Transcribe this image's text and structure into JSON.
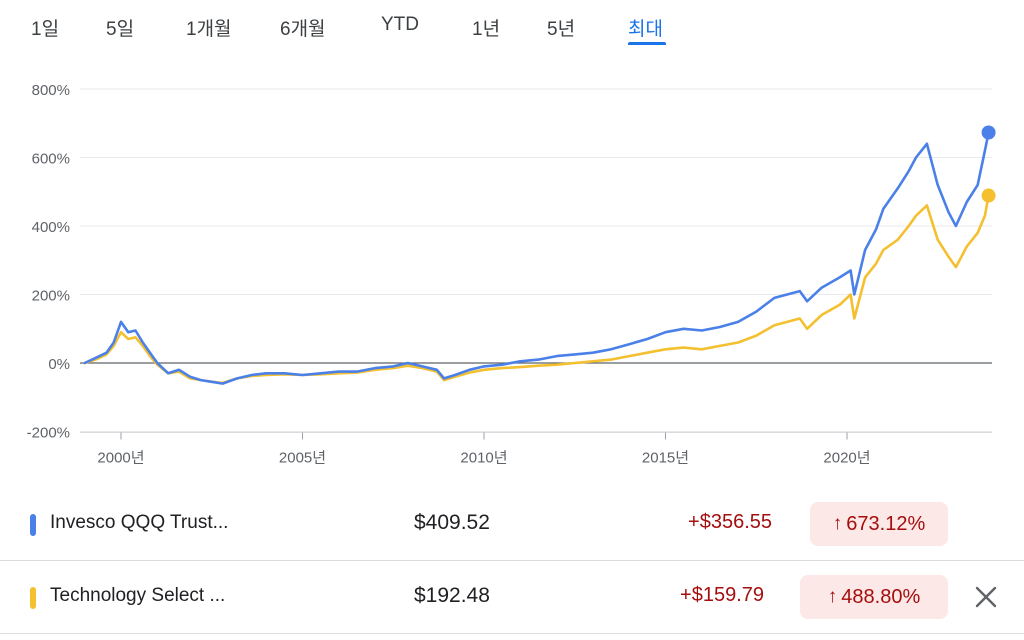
{
  "tabs": [
    {
      "label": "1일"
    },
    {
      "label": "5일"
    },
    {
      "label": "1개월"
    },
    {
      "label": "6개월"
    },
    {
      "label": "YTD"
    },
    {
      "label": "1년"
    },
    {
      "label": "5년"
    },
    {
      "label": "최대"
    }
  ],
  "active_tab": "최대",
  "colors": {
    "accent": "#1a73e8",
    "series_qqq": "#4a80e8",
    "series_xlk": "#f4c030",
    "gain_text": "#a50e0e",
    "gain_bg": "#fce8e6"
  },
  "chart_data": {
    "type": "line",
    "y_ticks": [
      "800%",
      "600%",
      "400%",
      "200%",
      "0%",
      "-200%"
    ],
    "ylim": [
      -200,
      800
    ],
    "x_ticks": [
      "2000년",
      "2005년",
      "2010년",
      "2015년",
      "2020년"
    ],
    "xlim": [
      1999.0,
      2023.9
    ],
    "grid": true,
    "series": [
      {
        "name": "Invesco QQQ Trust...",
        "color": "#4a80e8",
        "x": [
          1999.0,
          1999.3,
          1999.6,
          1999.8,
          2000.0,
          2000.2,
          2000.4,
          2000.6,
          2000.8,
          2001.0,
          2001.3,
          2001.6,
          2001.9,
          2002.2,
          2002.5,
          2002.8,
          2003.2,
          2003.6,
          2004.0,
          2004.5,
          2005.0,
          2005.5,
          2006.0,
          2006.5,
          2007.0,
          2007.5,
          2007.9,
          2008.3,
          2008.7,
          2008.9,
          2009.2,
          2009.6,
          2010.0,
          2010.5,
          2011.0,
          2011.5,
          2012.0,
          2012.5,
          2013.0,
          2013.5,
          2014.0,
          2014.5,
          2015.0,
          2015.5,
          2016.0,
          2016.5,
          2017.0,
          2017.5,
          2018.0,
          2018.7,
          2018.9,
          2019.3,
          2019.8,
          2020.1,
          2020.2,
          2020.5,
          2020.8,
          2021.0,
          2021.4,
          2021.7,
          2021.9,
          2022.2,
          2022.5,
          2022.8,
          2023.0,
          2023.3,
          2023.6,
          2023.8,
          2023.9
        ],
        "y": [
          0,
          15,
          30,
          60,
          120,
          90,
          95,
          60,
          30,
          0,
          -30,
          -20,
          -40,
          -50,
          -55,
          -60,
          -45,
          -35,
          -30,
          -30,
          -35,
          -30,
          -25,
          -25,
          -15,
          -10,
          0,
          -10,
          -20,
          -45,
          -35,
          -20,
          -10,
          -5,
          5,
          10,
          20,
          25,
          30,
          40,
          55,
          70,
          90,
          100,
          95,
          105,
          120,
          150,
          190,
          210,
          180,
          220,
          250,
          270,
          200,
          330,
          390,
          450,
          510,
          560,
          600,
          640,
          520,
          440,
          400,
          470,
          520,
          620,
          673
        ]
      },
      {
        "name": "Technology Select ...",
        "color": "#f4c030",
        "x": [
          1999.0,
          1999.3,
          1999.6,
          1999.8,
          2000.0,
          2000.2,
          2000.4,
          2000.6,
          2000.8,
          2001.0,
          2001.3,
          2001.6,
          2001.9,
          2002.2,
          2002.5,
          2002.8,
          2003.2,
          2003.6,
          2004.0,
          2004.5,
          2005.0,
          2005.5,
          2006.0,
          2006.5,
          2007.0,
          2007.5,
          2007.9,
          2008.3,
          2008.7,
          2008.9,
          2009.2,
          2009.6,
          2010.0,
          2010.5,
          2011.0,
          2011.5,
          2012.0,
          2012.5,
          2013.0,
          2013.5,
          2014.0,
          2014.5,
          2015.0,
          2015.5,
          2016.0,
          2016.5,
          2017.0,
          2017.5,
          2018.0,
          2018.7,
          2018.9,
          2019.3,
          2019.8,
          2020.1,
          2020.2,
          2020.5,
          2020.8,
          2021.0,
          2021.4,
          2021.7,
          2021.9,
          2022.2,
          2022.5,
          2022.8,
          2023.0,
          2023.3,
          2023.6,
          2023.8,
          2023.9
        ],
        "y": [
          0,
          10,
          25,
          50,
          90,
          70,
          75,
          50,
          20,
          -5,
          -30,
          -25,
          -45,
          -50,
          -55,
          -58,
          -45,
          -38,
          -35,
          -33,
          -35,
          -33,
          -30,
          -28,
          -20,
          -15,
          -8,
          -15,
          -25,
          -50,
          -40,
          -28,
          -20,
          -15,
          -12,
          -8,
          -5,
          0,
          5,
          10,
          20,
          30,
          40,
          45,
          40,
          50,
          60,
          80,
          110,
          130,
          100,
          140,
          170,
          200,
          130,
          250,
          290,
          330,
          360,
          400,
          430,
          460,
          360,
          310,
          280,
          340,
          380,
          430,
          489
        ]
      }
    ]
  },
  "rows": [
    {
      "name": "Invesco QQQ Trust...",
      "price": "$409.52",
      "change": "+$356.55",
      "pct_arrow": "↑",
      "pct": "673.12%",
      "color": "#4a80e8"
    },
    {
      "name": "Technology Select ...",
      "price": "$192.48",
      "change": "+$159.79",
      "pct_arrow": "↑",
      "pct": "488.80%",
      "color": "#f4c030",
      "close_icon": "close-icon"
    }
  ]
}
